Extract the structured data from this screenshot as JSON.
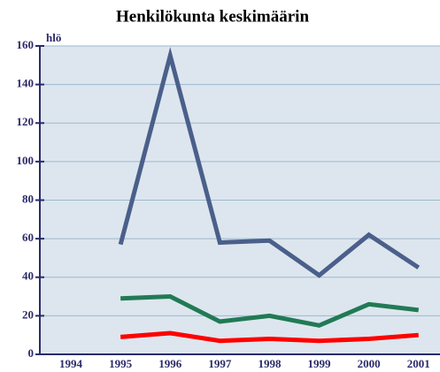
{
  "chart_data": {
    "type": "line",
    "title": "Henkilökunta keskimäärin",
    "y_label": "hlö",
    "categories": [
      "1994",
      "1995",
      "1996",
      "1997",
      "1998",
      "1999",
      "2000",
      "2001"
    ],
    "series": [
      {
        "color": "#4a5f8a",
        "values": [
          null,
          57,
          155,
          58,
          59,
          41,
          62,
          45
        ]
      },
      {
        "color": "#217a55",
        "values": [
          null,
          29,
          30,
          17,
          20,
          15,
          26,
          23
        ]
      },
      {
        "color": "#ff0000",
        "values": [
          null,
          9,
          11,
          7,
          8,
          7,
          8,
          10
        ]
      }
    ],
    "ylim": [
      0,
      160
    ],
    "yticks": [
      0,
      20,
      40,
      60,
      80,
      100,
      120,
      140,
      160
    ],
    "grid": true
  }
}
